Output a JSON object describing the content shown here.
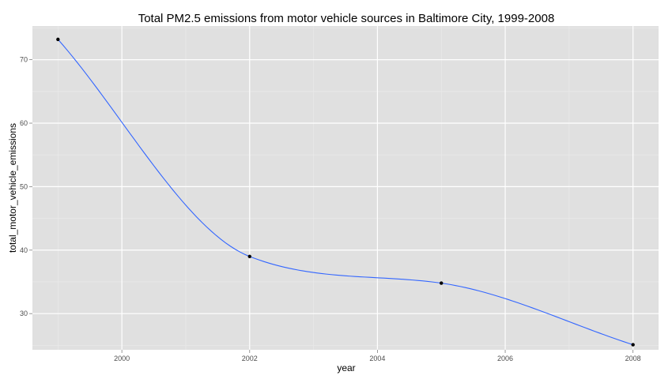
{
  "chart_data": {
    "type": "line",
    "title": "Total PM2.5 emissions from motor vehicle sources in Baltimore City, 1999-2008",
    "xlabel": "year",
    "ylabel": "total_motor_vehicle_emissions",
    "x": [
      1999,
      2002,
      2005,
      2008
    ],
    "series": [
      {
        "values": [
          73.2,
          39.0,
          34.8,
          25.1
        ]
      }
    ],
    "xlim": [
      1998.6,
      2008.4
    ],
    "ylim": [
      24.3,
      75.3
    ],
    "x_ticks": [
      2000,
      2002,
      2004,
      2006,
      2008
    ],
    "x_tick_labels": [
      "2000",
      "2002",
      "2004",
      "2006",
      "2008"
    ],
    "y_ticks": [
      30,
      40,
      50,
      60,
      70
    ],
    "y_tick_labels": [
      "30",
      "40",
      "50",
      "60",
      "70"
    ],
    "grid": true,
    "smoothed": true,
    "colors": {
      "panel_background": "#e0e0e0",
      "grid_major": "#ffffff",
      "grid_minor": "#ebebeb",
      "line": "#3366ff",
      "points": "#000000",
      "tick_text": "#4d4d4d"
    }
  }
}
